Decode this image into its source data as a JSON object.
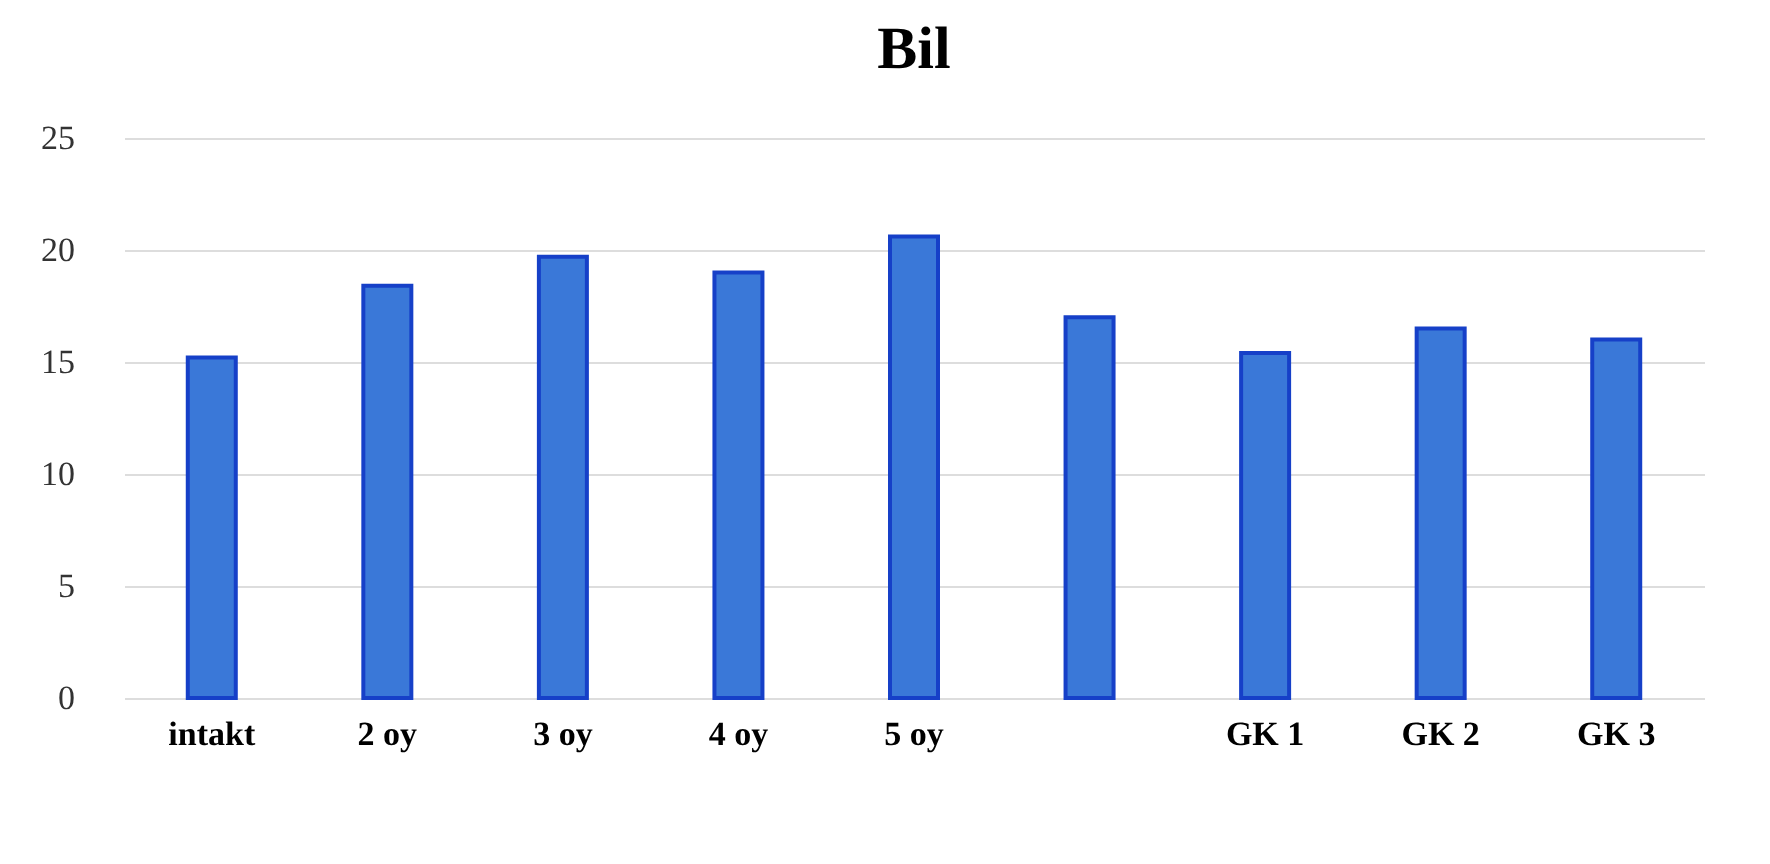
{
  "chart_data": {
    "type": "bar",
    "title": "Bil",
    "categories": [
      "intakt",
      "2 oy",
      "3 oy",
      "4 oy",
      "5 oy",
      null,
      "GK 1",
      "GK 2",
      "GK 3"
    ],
    "values": [
      15.2,
      18.4,
      19.7,
      19.0,
      20.6,
      17.0,
      15.4,
      16.5,
      16.0
    ],
    "color": "#3a78d8",
    "ylim": [
      0,
      25
    ],
    "yticks": [
      0,
      5,
      10,
      15,
      20,
      25
    ],
    "grid": "y"
  }
}
